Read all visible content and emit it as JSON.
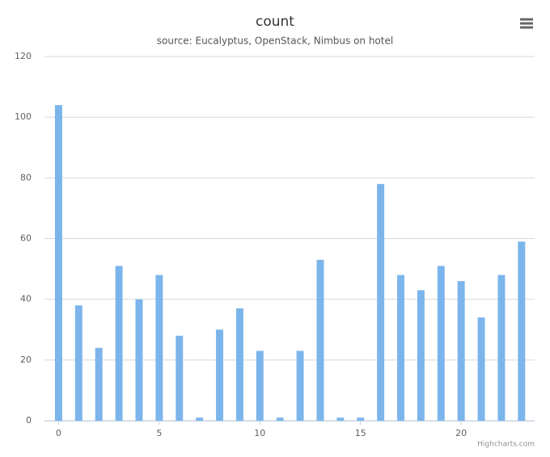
{
  "chart_data": {
    "type": "bar",
    "title": "count",
    "subtitle": "source: Eucalyptus, OpenStack, Nimbus on hotel",
    "x": [
      0,
      1,
      2,
      3,
      4,
      5,
      6,
      7,
      8,
      9,
      10,
      11,
      12,
      13,
      14,
      15,
      16,
      17,
      18,
      19,
      20,
      21,
      22,
      23
    ],
    "values": [
      104,
      38,
      24,
      51,
      40,
      48,
      28,
      1,
      30,
      37,
      23,
      1,
      23,
      53,
      1,
      1,
      78,
      48,
      43,
      51,
      46,
      34,
      48,
      59
    ],
    "color": "#7cb5ec",
    "xlim": [
      -0.7,
      23.65
    ],
    "xticks": [
      0,
      5,
      10,
      15,
      20
    ],
    "ylim": [
      0,
      120
    ],
    "yticks": [
      0,
      20,
      40,
      60,
      80,
      100,
      120
    ],
    "grid": true,
    "credits": "Highcharts.com"
  }
}
